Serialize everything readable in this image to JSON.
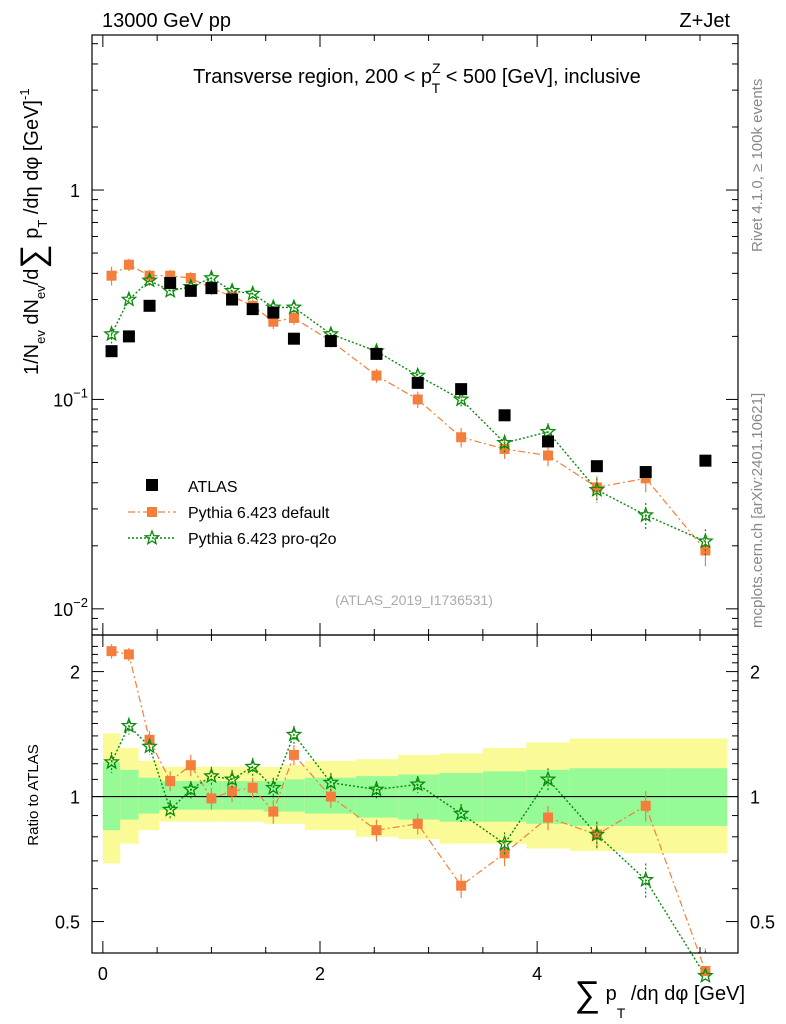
{
  "header": {
    "left": "13000 GeV pp",
    "right": "Z+Jet"
  },
  "side_labels": {
    "rivet": "Rivet 4.1.0, ≥ 100k events",
    "mcplots": "mcplots.cern.ch [arXiv:2401.10621]"
  },
  "chart_data": [
    {
      "type": "scatter",
      "title": "Transverse region, 200 < p_T^Z < 500 [GeV], inclusive",
      "title_parts": {
        "pre": "Transverse region, 200 < p",
        "sup": "Z",
        "sub": "T",
        "post": " < 500 [GeV], inclusive"
      },
      "analysis_id": "(ATLAS_2019_I1736531)",
      "ylabel": "1/N_ev dN_ev/d∑p_T/dη dφ [GeV]^-1",
      "ylabel_parts": {
        "a": "1/N",
        "a_sub": "ev",
        "b": " dN",
        "b_sub": "ev",
        "c": "/d",
        "sum": "∑",
        "d": " p",
        "d_sub": "T",
        "e": " /dη dφ  [GeV]",
        "e_sup": "-1"
      },
      "yscale": "log",
      "ylim": [
        0.0075,
        5.5
      ],
      "xlim": [
        -0.1,
        5.85
      ],
      "y_ticks": [
        {
          "value": 1,
          "label": "1",
          "sup": ""
        },
        {
          "value": 0.1,
          "label": "10",
          "sup": "−1"
        },
        {
          "value": 0.01,
          "label": "10",
          "sup": "−2"
        }
      ],
      "legend": {
        "position": "bottom-left",
        "entries": [
          "ATLAS",
          "Pythia 6.423 default",
          "Pythia 6.423 pro-q2o"
        ]
      },
      "colors": {
        "atlas": "#000000",
        "default": "#f47f3c",
        "proq2o": "#0a8a0a"
      },
      "series": [
        {
          "name": "ATLAS",
          "x": [
            0.08,
            0.24,
            0.43,
            0.62,
            0.81,
            1.0,
            1.19,
            1.38,
            1.57,
            1.76,
            2.1,
            2.52,
            2.9,
            3.3,
            3.7,
            4.1,
            4.55,
            5.0,
            5.55
          ],
          "y": [
            0.17,
            0.2,
            0.28,
            0.36,
            0.33,
            0.34,
            0.3,
            0.27,
            0.26,
            0.195,
            0.19,
            0.165,
            0.12,
            0.112,
            0.084,
            0.063,
            0.048,
            0.045,
            0.051
          ]
        },
        {
          "name": "Pythia 6.423 default",
          "x": [
            0.08,
            0.24,
            0.43,
            0.62,
            0.81,
            1.0,
            1.19,
            1.38,
            1.57,
            1.76,
            2.1,
            2.52,
            2.9,
            3.3,
            3.7,
            4.1,
            4.55,
            5.0,
            5.55
          ],
          "y": [
            0.39,
            0.44,
            0.39,
            0.39,
            0.38,
            0.34,
            0.31,
            0.28,
            0.235,
            0.245,
            0.19,
            0.13,
            0.1,
            0.066,
            0.058,
            0.054,
            0.038,
            0.042,
            0.019
          ],
          "yerr": [
            0.04,
            0.03,
            0.025,
            0.025,
            0.025,
            0.025,
            0.02,
            0.02,
            0.018,
            0.018,
            0.013,
            0.01,
            0.009,
            0.007,
            0.006,
            0.006,
            0.005,
            0.006,
            0.003
          ]
        },
        {
          "name": "Pythia 6.423 pro-q2o",
          "x": [
            0.08,
            0.24,
            0.43,
            0.62,
            0.81,
            1.0,
            1.19,
            1.38,
            1.57,
            1.76,
            2.1,
            2.52,
            2.9,
            3.3,
            3.7,
            4.1,
            4.55,
            5.0,
            5.55
          ],
          "y": [
            0.205,
            0.3,
            0.37,
            0.33,
            0.345,
            0.38,
            0.33,
            0.32,
            0.275,
            0.275,
            0.205,
            0.17,
            0.13,
            0.1,
            0.062,
            0.07,
            0.037,
            0.028,
            0.021
          ],
          "yerr": [
            0.02,
            0.02,
            0.02,
            0.02,
            0.02,
            0.02,
            0.018,
            0.018,
            0.016,
            0.016,
            0.012,
            0.01,
            0.009,
            0.008,
            0.006,
            0.007,
            0.005,
            0.004,
            0.003
          ]
        }
      ]
    },
    {
      "type": "scatter",
      "title": "Ratio to ATLAS",
      "ylabel": "Ratio to ATLAS",
      "xlabel": "∑ p_T /dη dφ [GeV]",
      "xlabel_parts": {
        "sum": "∑",
        "p": " p",
        "p_sub": "T",
        "rest": " /dη dφ [GeV]"
      },
      "xlim": [
        -0.1,
        5.85
      ],
      "ylim": [
        0.42,
        2.45
      ],
      "x_ticks": [
        0,
        2,
        4
      ],
      "y_ticks": [
        0.5,
        1,
        2
      ],
      "reference_line": 1,
      "bands": {
        "edges": [
          0,
          0.16,
          0.33,
          0.52,
          0.71,
          0.9,
          1.1,
          1.29,
          1.48,
          1.67,
          1.86,
          2.33,
          2.72,
          3.1,
          3.5,
          3.9,
          4.3,
          4.8,
          5.2,
          5.75
        ],
        "outer_lo": [
          0.69,
          0.77,
          0.83,
          0.87,
          0.87,
          0.87,
          0.87,
          0.87,
          0.86,
          0.86,
          0.83,
          0.8,
          0.79,
          0.77,
          0.77,
          0.75,
          0.74,
          0.73,
          0.73
        ],
        "outer_hi": [
          1.42,
          1.31,
          1.22,
          1.18,
          1.18,
          1.18,
          1.18,
          1.18,
          1.18,
          1.19,
          1.22,
          1.23,
          1.26,
          1.27,
          1.31,
          1.35,
          1.38,
          1.38,
          1.38
        ],
        "inner_lo": [
          0.83,
          0.88,
          0.91,
          0.93,
          0.93,
          0.93,
          0.93,
          0.93,
          0.92,
          0.92,
          0.91,
          0.89,
          0.88,
          0.87,
          0.87,
          0.86,
          0.85,
          0.85,
          0.85
        ],
        "inner_hi": [
          1.21,
          1.16,
          1.11,
          1.09,
          1.09,
          1.09,
          1.09,
          1.09,
          1.09,
          1.1,
          1.11,
          1.12,
          1.13,
          1.14,
          1.15,
          1.16,
          1.17,
          1.17,
          1.17
        ],
        "outer_color": "#fafa96",
        "inner_color": "#96fa96"
      },
      "series": [
        {
          "name": "Pythia 6.423 default",
          "x": [
            0.08,
            0.24,
            0.43,
            0.62,
            0.81,
            1.0,
            1.19,
            1.38,
            1.57,
            1.76,
            2.1,
            2.52,
            2.9,
            3.3,
            3.7,
            4.1,
            4.55,
            5.0,
            5.55
          ],
          "y": [
            2.24,
            2.2,
            1.37,
            1.09,
            1.19,
            0.99,
            1.03,
            1.05,
            0.92,
            1.26,
            1.0,
            0.83,
            0.86,
            0.61,
            0.73,
            0.89,
            0.81,
            0.95,
            0.38
          ],
          "yerr": [
            0.09,
            0.08,
            0.07,
            0.06,
            0.07,
            0.06,
            0.06,
            0.06,
            0.06,
            0.07,
            0.06,
            0.05,
            0.05,
            0.04,
            0.05,
            0.06,
            0.06,
            0.08,
            0.04
          ]
        },
        {
          "name": "Pythia 6.423 pro-q2o",
          "x": [
            0.08,
            0.24,
            0.43,
            0.62,
            0.81,
            1.0,
            1.19,
            1.38,
            1.57,
            1.76,
            2.1,
            2.52,
            2.9,
            3.3,
            3.7,
            4.1,
            4.55,
            5.0,
            5.55
          ],
          "y": [
            1.21,
            1.48,
            1.32,
            0.93,
            1.04,
            1.12,
            1.1,
            1.18,
            1.05,
            1.41,
            1.08,
            1.04,
            1.07,
            0.91,
            0.77,
            1.1,
            0.81,
            0.63,
            0.37
          ],
          "yerr": [
            0.07,
            0.07,
            0.06,
            0.05,
            0.05,
            0.06,
            0.06,
            0.06,
            0.06,
            0.07,
            0.06,
            0.05,
            0.05,
            0.05,
            0.05,
            0.07,
            0.06,
            0.06,
            0.05
          ]
        }
      ]
    }
  ]
}
